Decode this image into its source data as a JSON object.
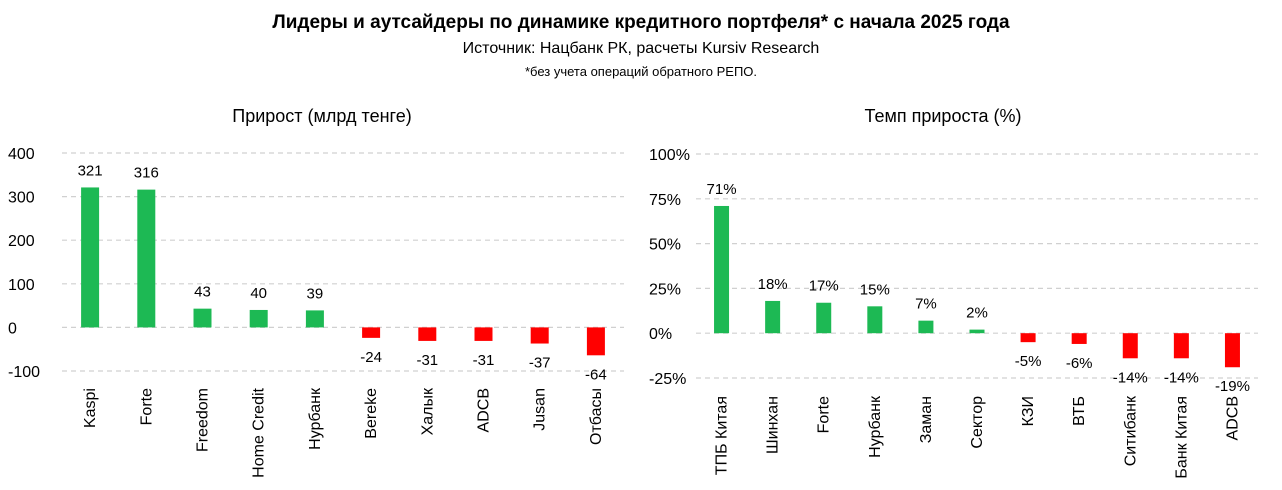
{
  "header": {
    "title": "Лидеры и аутсайдеры по динамике кредитного портфеля* с начала 2025 года",
    "source": "Источник: Нацбанк РК, расчеты Kursiv Research",
    "note": "*без учета операций обратного РЕПО."
  },
  "colors": {
    "positive": "#1db954",
    "negative": "#ff0000",
    "grid": "#d0d0d0"
  },
  "chart_data": [
    {
      "type": "bar",
      "title": "Прирост (млрд тенге)",
      "categories": [
        "Kaspi",
        "Forte",
        "Freedom",
        "Home Credit",
        "Нурбанк",
        "Bereke",
        "Халык",
        "ADCB",
        "Jusan",
        "Отбасы"
      ],
      "values": [
        321,
        316,
        43,
        40,
        39,
        -24,
        -31,
        -31,
        -37,
        -64
      ],
      "value_labels": [
        "321",
        "316",
        "43",
        "40",
        "39",
        "-24",
        "-31",
        "-31",
        "-37",
        "-64"
      ],
      "ylim": [
        -100,
        400
      ],
      "yticks": [
        400,
        300,
        200,
        100,
        0,
        -100
      ],
      "ytick_labels": [
        "400",
        "300",
        "200",
        "100",
        "0",
        "-100"
      ],
      "grid": true
    },
    {
      "type": "bar",
      "title": "Темп прироста (%)",
      "categories": [
        "ТПБ Китая",
        "Шинхан",
        "Forte",
        "Нурбанк",
        "Заман",
        "Сектор",
        "КЗИ",
        "ВТБ",
        "Ситибанк",
        "Банк Китая",
        "ADCB"
      ],
      "values": [
        71,
        18,
        17,
        15,
        7,
        2,
        -5,
        -6,
        -14,
        -14,
        -19
      ],
      "value_labels": [
        "71%",
        "18%",
        "17%",
        "15%",
        "7%",
        "2%",
        "-5%",
        "-6%",
        "-14%",
        "-14%",
        "-19%"
      ],
      "ylim": [
        -25,
        100
      ],
      "yticks": [
        100,
        75,
        50,
        25,
        0,
        -25
      ],
      "ytick_labels": [
        "100%",
        "75%",
        "50%",
        "25%",
        "0%",
        "-25%"
      ],
      "grid": true
    }
  ]
}
